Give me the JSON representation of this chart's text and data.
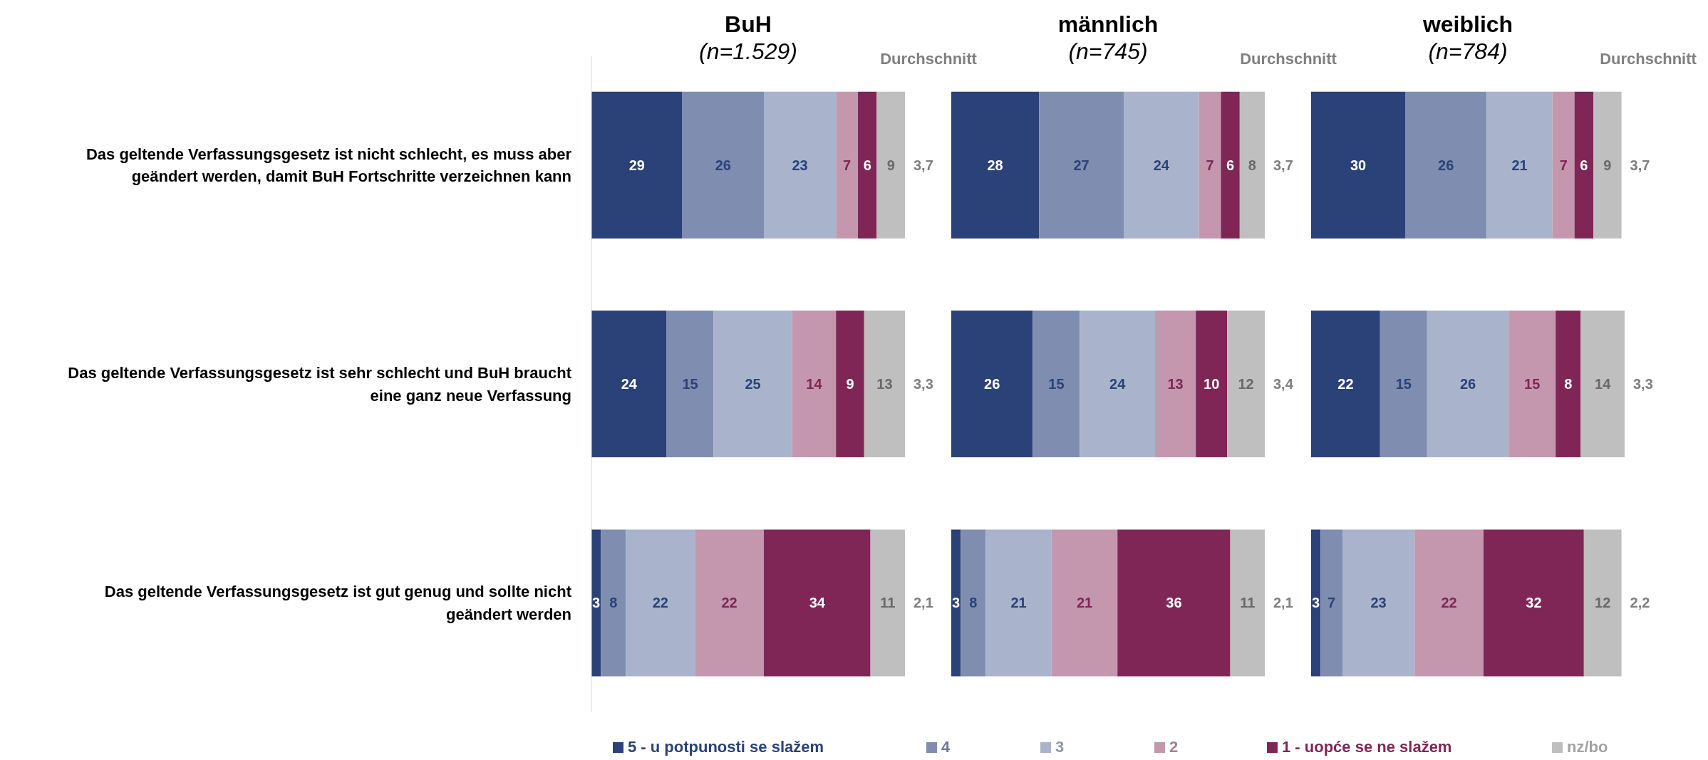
{
  "chart_data": [
    {
      "type": "bar",
      "orientation": "horizontal",
      "stacked": true,
      "title": "BuH",
      "subtitle": "(n=1.529)",
      "categories": [
        "Das  geltende Verfassungsgesetz ist nicht schlecht, es muss aber geändert werden, damit BuH Fortschritte verzeichnen kann",
        "Das geltende Verfassungsgesetz ist sehr schlecht und BuH braucht eine ganz neue Verfassung",
        "Das geltende Verfassungsgesetz ist gut genug und sollte nicht geändert werden"
      ],
      "xlim": [
        0,
        100
      ],
      "tick_labels": "y",
      "data_labels": true,
      "legend": "bottom",
      "series": [
        {
          "name": "5 - u potpunosti se slažem",
          "color": "#2a4278",
          "values": [
            29,
            24,
            3
          ]
        },
        {
          "name": "4",
          "color": "#7f8db0",
          "values": [
            26,
            15,
            8
          ]
        },
        {
          "name": "3",
          "color": "#a9b4cc",
          "values": [
            23,
            25,
            22
          ]
        },
        {
          "name": "2",
          "color": "#c497ae",
          "values": [
            7,
            14,
            22
          ]
        },
        {
          "name": "1 - uopće se ne slažem",
          "color": "#7f2657",
          "values": [
            6,
            9,
            34
          ]
        },
        {
          "name": "nz/bo",
          "color": "#bfbfbf",
          "values": [
            9,
            13,
            11
          ]
        }
      ],
      "annotations": [
        "Durchschnitt",
        "3,7",
        "3,3",
        "2,1"
      ]
    },
    {
      "type": "bar",
      "orientation": "horizontal",
      "stacked": true,
      "title": "männlich",
      "subtitle": "(n=745)",
      "categories": [
        null,
        null,
        null
      ],
      "xlim": [
        0,
        100
      ],
      "tick_labels": false,
      "data_labels": true,
      "series": [
        {
          "color": "#2a4278",
          "values": [
            28,
            26,
            3
          ]
        },
        {
          "color": "#7f8db0",
          "values": [
            27,
            15,
            8
          ]
        },
        {
          "color": "#a9b4cc",
          "values": [
            24,
            24,
            21
          ]
        },
        {
          "color": "#c497ae",
          "values": [
            7,
            13,
            21
          ]
        },
        {
          "color": "#7f2657",
          "values": [
            6,
            10,
            36
          ]
        },
        {
          "color": "#bfbfbf",
          "values": [
            8,
            12,
            11
          ]
        }
      ],
      "annotations": [
        "Durchschnitt",
        "3,7",
        "3,4",
        "2,1"
      ]
    },
    {
      "type": "bar",
      "orientation": "horizontal",
      "stacked": true,
      "title": "weiblich",
      "subtitle": "(n=784)",
      "categories": [
        null,
        null,
        null
      ],
      "xlim": [
        0,
        100
      ],
      "tick_labels": false,
      "data_labels": true,
      "series": [
        {
          "color": "#2a4278",
          "values": [
            30,
            22,
            3
          ]
        },
        {
          "color": "#7f8db0",
          "values": [
            26,
            15,
            7
          ]
        },
        {
          "color": "#a9b4cc",
          "values": [
            21,
            26,
            23
          ]
        },
        {
          "color": "#c497ae",
          "values": [
            7,
            15,
            22
          ]
        },
        {
          "color": "#7f2657",
          "values": [
            6,
            8,
            32
          ]
        },
        {
          "color": "#bfbfbf",
          "values": [
            9,
            14,
            12
          ]
        }
      ],
      "annotations": [
        "Durchschnitt",
        "3,7",
        "3,3",
        "2,2"
      ]
    }
  ]
}
